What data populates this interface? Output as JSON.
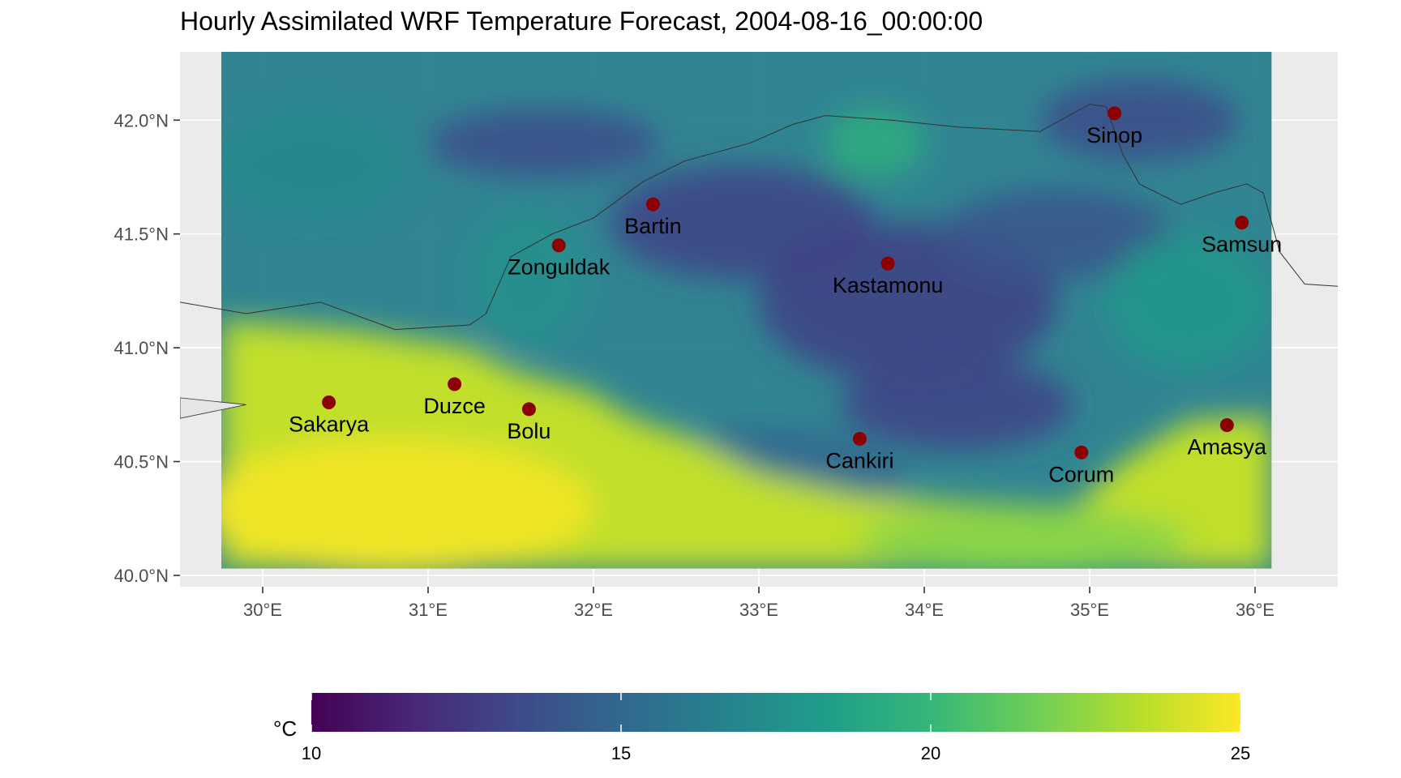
{
  "title": "Hourly Assimilated WRF Temperature Forecast, 2004-08-16_00:00:00",
  "map": {
    "lon_range": [
      29.5,
      36.5
    ],
    "lat_range": [
      39.95,
      42.3
    ],
    "lat_ticks": [
      {
        "value": 42.0,
        "label": "42.0°N"
      },
      {
        "value": 41.5,
        "label": "41.5°N"
      },
      {
        "value": 41.0,
        "label": "41.0°N"
      },
      {
        "value": 40.5,
        "label": "40.5°N"
      },
      {
        "value": 40.0,
        "label": "40.0°N"
      }
    ],
    "lon_ticks": [
      {
        "value": 30,
        "label": "30°E"
      },
      {
        "value": 31,
        "label": "31°E"
      },
      {
        "value": 32,
        "label": "32°E"
      },
      {
        "value": 33,
        "label": "33°E"
      },
      {
        "value": 34,
        "label": "34°E"
      },
      {
        "value": 35,
        "label": "35°E"
      },
      {
        "value": 36,
        "label": "36°E"
      }
    ],
    "grid": true,
    "temperature_field_extent": {
      "lon": [
        29.75,
        36.1
      ],
      "lat": [
        40.03,
        42.3
      ]
    },
    "cities": [
      {
        "name": "Sinop",
        "lon": 35.15,
        "lat": 42.03
      },
      {
        "name": "Bartin",
        "lon": 32.36,
        "lat": 41.63
      },
      {
        "name": "Samsun",
        "lon": 35.92,
        "lat": 41.55
      },
      {
        "name": "Zonguldak",
        "lon": 31.79,
        "lat": 41.45
      },
      {
        "name": "Kastamonu",
        "lon": 33.78,
        "lat": 41.37
      },
      {
        "name": "Duzce",
        "lon": 31.16,
        "lat": 40.84
      },
      {
        "name": "Sakarya",
        "lon": 30.4,
        "lat": 40.76
      },
      {
        "name": "Bolu",
        "lon": 31.61,
        "lat": 40.73
      },
      {
        "name": "Amasya",
        "lon": 35.83,
        "lat": 40.66
      },
      {
        "name": "Cankiri",
        "lon": 33.61,
        "lat": 40.6
      },
      {
        "name": "Corum",
        "lon": 34.95,
        "lat": 40.54
      }
    ],
    "coastline": [
      [
        29.5,
        41.2
      ],
      [
        29.9,
        41.15
      ],
      [
        30.35,
        41.2
      ],
      [
        30.8,
        41.08
      ],
      [
        31.25,
        41.1
      ],
      [
        31.35,
        41.15
      ],
      [
        31.5,
        41.4
      ],
      [
        31.75,
        41.5
      ],
      [
        32.0,
        41.57
      ],
      [
        32.3,
        41.73
      ],
      [
        32.55,
        41.82
      ],
      [
        32.95,
        41.9
      ],
      [
        33.2,
        41.98
      ],
      [
        33.4,
        42.02
      ],
      [
        33.8,
        42.0
      ],
      [
        34.2,
        41.97
      ],
      [
        34.7,
        41.95
      ],
      [
        35.0,
        42.07
      ],
      [
        35.1,
        42.06
      ],
      [
        35.2,
        41.85
      ],
      [
        35.3,
        41.72
      ],
      [
        35.55,
        41.63
      ],
      [
        35.75,
        41.68
      ],
      [
        35.95,
        41.72
      ],
      [
        36.05,
        41.68
      ],
      [
        36.15,
        41.42
      ],
      [
        36.3,
        41.28
      ],
      [
        36.5,
        41.27
      ]
    ],
    "colors": {
      "panel": "#ebebeb",
      "gridline": "#ffffff",
      "city_marker": "#8b0000",
      "coastline": "#333333"
    }
  },
  "legend": {
    "title": "°C",
    "min": 10,
    "max": 25,
    "ticks": [
      10,
      15,
      20,
      25
    ],
    "palette": "viridis",
    "colors": [
      "#440154",
      "#482878",
      "#3e4a89",
      "#31688e",
      "#26828e",
      "#1f9e89",
      "#35b779",
      "#6ece58",
      "#b5de2b",
      "#fde725"
    ]
  }
}
